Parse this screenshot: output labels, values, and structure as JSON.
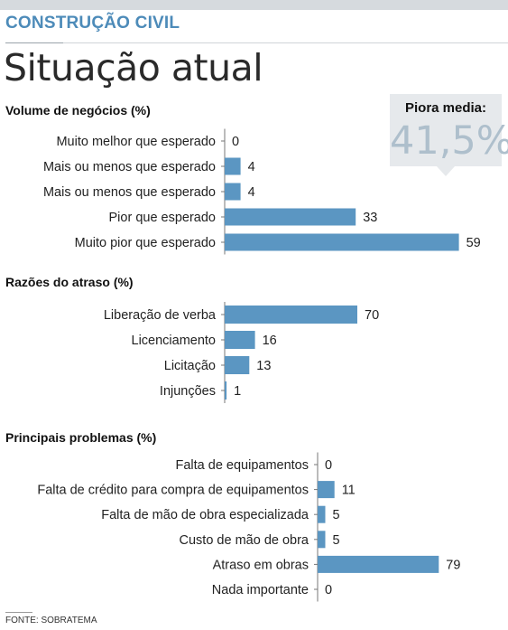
{
  "header": {
    "kicker": "CONSTRUÇÃO CIVIL",
    "headline": "Situação atual"
  },
  "callout": {
    "label": "Piora media:",
    "value": "41,5%"
  },
  "colors": {
    "bar": "#5b96c2",
    "kicker": "#4d8bb9",
    "callout_value": "#aebfcc"
  },
  "chart_data": [
    {
      "type": "bar",
      "orientation": "horizontal",
      "title": "Volume de negócios (%)",
      "categories": [
        "Muito melhor que esperado",
        "Mais ou menos que esperado",
        "Mais ou menos que esperado",
        "Pior que esperado",
        "Muito pior que esperado"
      ],
      "values": [
        0,
        4,
        4,
        33,
        59
      ],
      "data_labels": [
        "0",
        "4",
        "4",
        "33",
        "59"
      ]
    },
    {
      "type": "bar",
      "orientation": "horizontal",
      "title": "Razões do atraso (%)",
      "categories": [
        "Liberação de verba",
        "Licenciamento",
        "Licitação",
        "Injunções"
      ],
      "values": [
        70,
        16,
        13,
        1
      ],
      "data_labels": [
        "70",
        "16",
        "13",
        "1"
      ]
    },
    {
      "type": "bar",
      "orientation": "horizontal",
      "title": "Principais problemas (%)",
      "categories": [
        "Falta de equipamentos",
        "Falta de crédito para compra de equipamentos",
        "Falta de mão de obra especializada",
        "Custo de mão de obra",
        "Atraso em obras",
        "Nada importante"
      ],
      "values": [
        0,
        11,
        5,
        5,
        79,
        0
      ],
      "data_labels": [
        "0",
        "11",
        "5",
        "5",
        "79",
        "0"
      ]
    }
  ],
  "source": "FONTE: SOBRATEMA"
}
